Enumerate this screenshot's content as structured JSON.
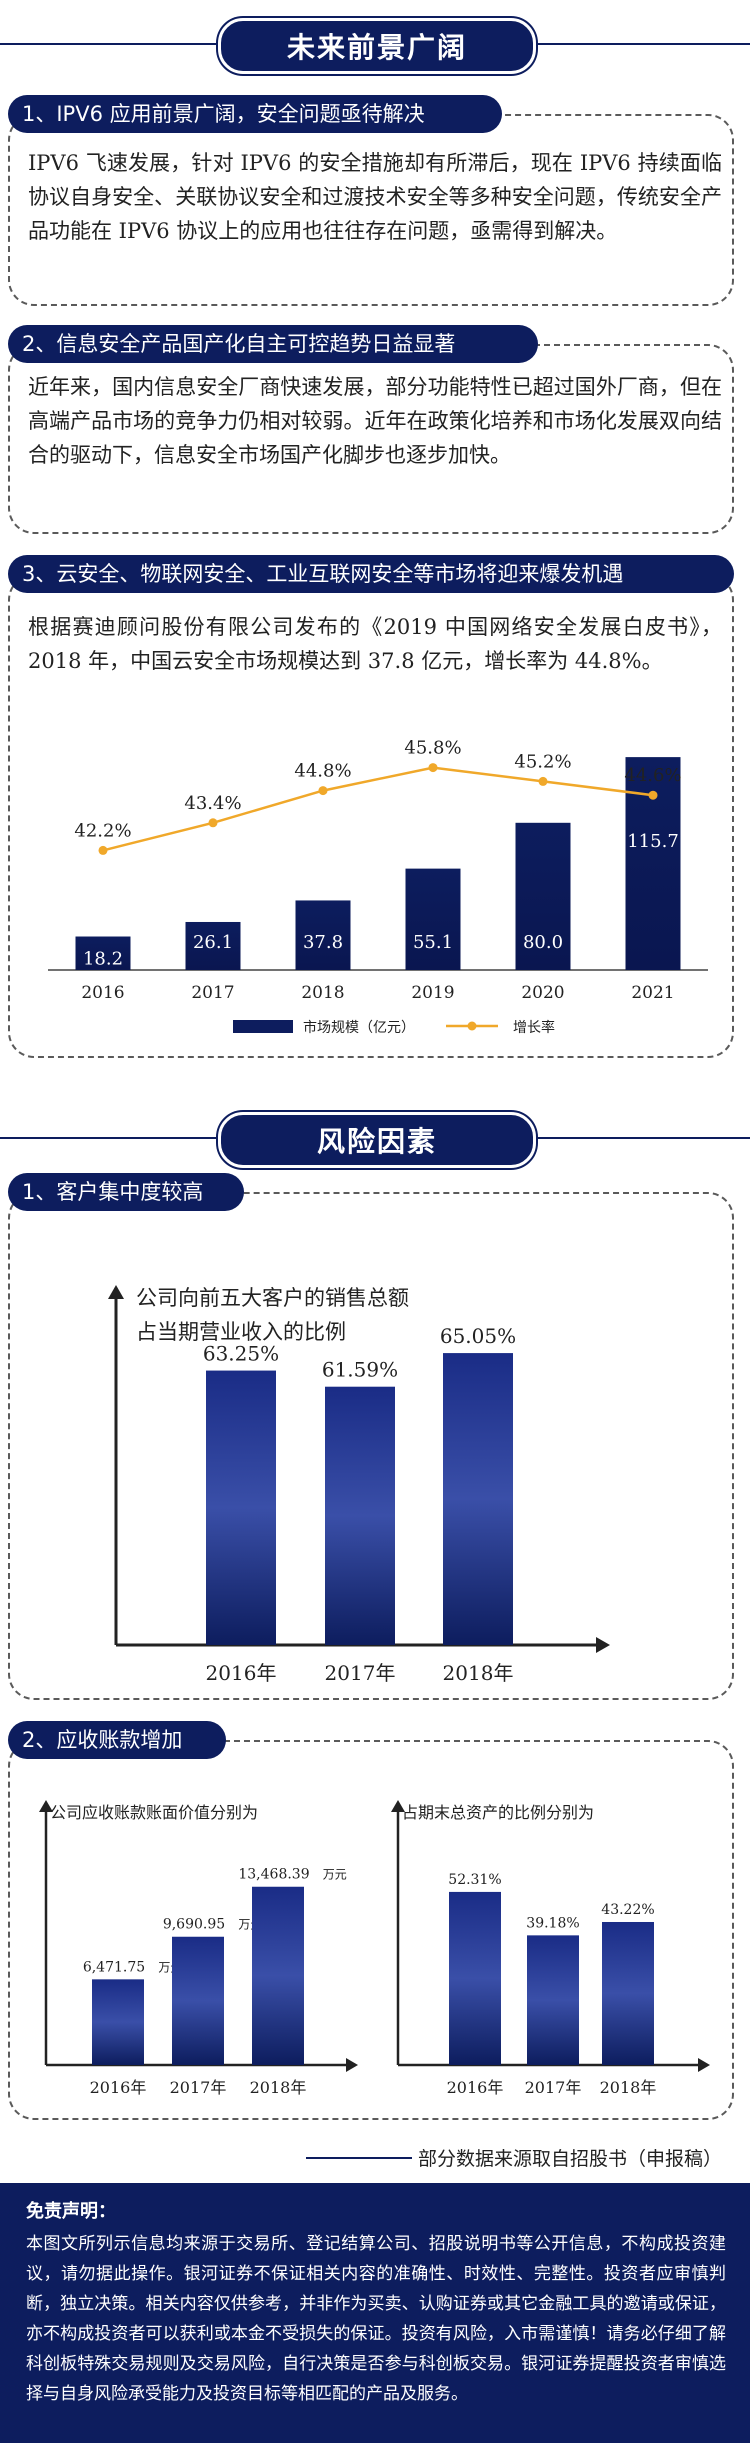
{
  "header1": {
    "title": "未来前景广阔"
  },
  "section1": {
    "tag": "1、IPV6 应用前景广阔，安全问题亟待解决",
    "text": "IPV6 飞速发展，针对 IPV6 的安全措施却有所滞后，现在 IPV6 持续面临协议自身安全、关联协议安全和过渡技术安全等多种安全问题，传统安全产品功能在 IPV6 协议上的应用也往往存在问题，亟需得到解决。"
  },
  "section2": {
    "tag": "2、信息安全产品国产化自主可控趋势日益显著",
    "text": "近年来，国内信息安全厂商快速发展，部分功能特性已超过国外厂商，但在高端产品市场的竞争力仍相对较弱。近年在政策化培养和市场化发展双向结合的驱动下，信息安全市场国产化脚步也逐步加快。"
  },
  "section3": {
    "tag": "3、云安全、物联网安全、工业互联网安全等市场将迎来爆发机遇",
    "text": "根据赛迪顾问股份有限公司发布的《2019 中国网络安全发展白皮书》，2018 年，中国云安全市场规模达到 37.8 亿元，增长率为 44.8%。"
  },
  "header2": {
    "title": "风险因素"
  },
  "section4": {
    "tag": "1、客户集中度较高"
  },
  "section5": {
    "tag": "2、应收账款增加"
  },
  "source_note": "部分数据来源取自招股书（申报稿）",
  "disclaimer": {
    "title": "免责声明：",
    "text": "本图文所列示信息均来源于交易所、登记结算公司、招股说明书等公开信息，不构成投资建议，请勿据此操作。银河证券不保证相关内容的准确性、时效性、完整性。投资者应审慎判断，独立决策。相关内容仅供参考，并非作为买卖、认购证券或其它金融工具的邀请或保证，亦不构成投资者可以获利或本金不受损失的保证。投资有风险，入市需谨慎！请务必仔细了解科创板特殊交易规则及交易风险，自行决策是否参与科创板交易。银河证券提醒投资者审慎选择与自身风险承受能力及投资目标等相匹配的产品及服务。"
  },
  "colors": {
    "navy": "#0d1d5e",
    "bar_light": "#3a4fa8",
    "line_orange": "#f0a82a"
  },
  "chart_data": [
    {
      "type": "bar+line",
      "categories": [
        "2016",
        "2017",
        "2018",
        "2019",
        "2020",
        "2021"
      ],
      "series": [
        {
          "name": "市场规模（亿元）",
          "type": "bar",
          "values": [
            18.2,
            26.1,
            37.8,
            55.1,
            80.0,
            115.7
          ],
          "labels": [
            "18.2",
            "26.1",
            "37.8",
            "55.1",
            "80.0",
            "115.7"
          ]
        },
        {
          "name": "增长率",
          "type": "line",
          "values": [
            42.2,
            43.4,
            44.8,
            45.8,
            45.2,
            44.6
          ],
          "labels": [
            "42.2%",
            "43.4%",
            "44.8%",
            "45.8%",
            "45.2%",
            "44.6%"
          ]
        }
      ],
      "ylim": [
        0,
        125
      ],
      "y2lim": [
        37.0,
        47.0
      ],
      "legend": "bottom"
    },
    {
      "type": "bar",
      "title": [
        "公司向前五大客户的销售总额",
        "占当期营业收入的比例"
      ],
      "categories": [
        "2016年",
        "2017年",
        "2018年"
      ],
      "values": [
        63.25,
        61.59,
        65.05
      ],
      "labels": [
        "63.25%",
        "61.59%",
        "65.05%"
      ],
      "ylim": [
        35,
        70
      ]
    },
    {
      "type": "bar",
      "title": "公司应收账款账面价值分别为",
      "categories": [
        "2016年",
        "2017年",
        "2018年"
      ],
      "values": [
        6471.75,
        9690.95,
        13468.39
      ],
      "labels": [
        "6,471.75",
        "9,690.95",
        "13,468.39"
      ],
      "unit": "万元",
      "ylim": [
        0,
        17000
      ]
    },
    {
      "type": "bar",
      "title": "占期末总资产的比例分别为",
      "categories": [
        "2016年",
        "2017年",
        "2018年"
      ],
      "values": [
        52.31,
        39.18,
        43.22
      ],
      "labels": [
        "52.31%",
        "39.18%",
        "43.22%"
      ],
      "ylim": [
        0,
        68
      ]
    }
  ]
}
